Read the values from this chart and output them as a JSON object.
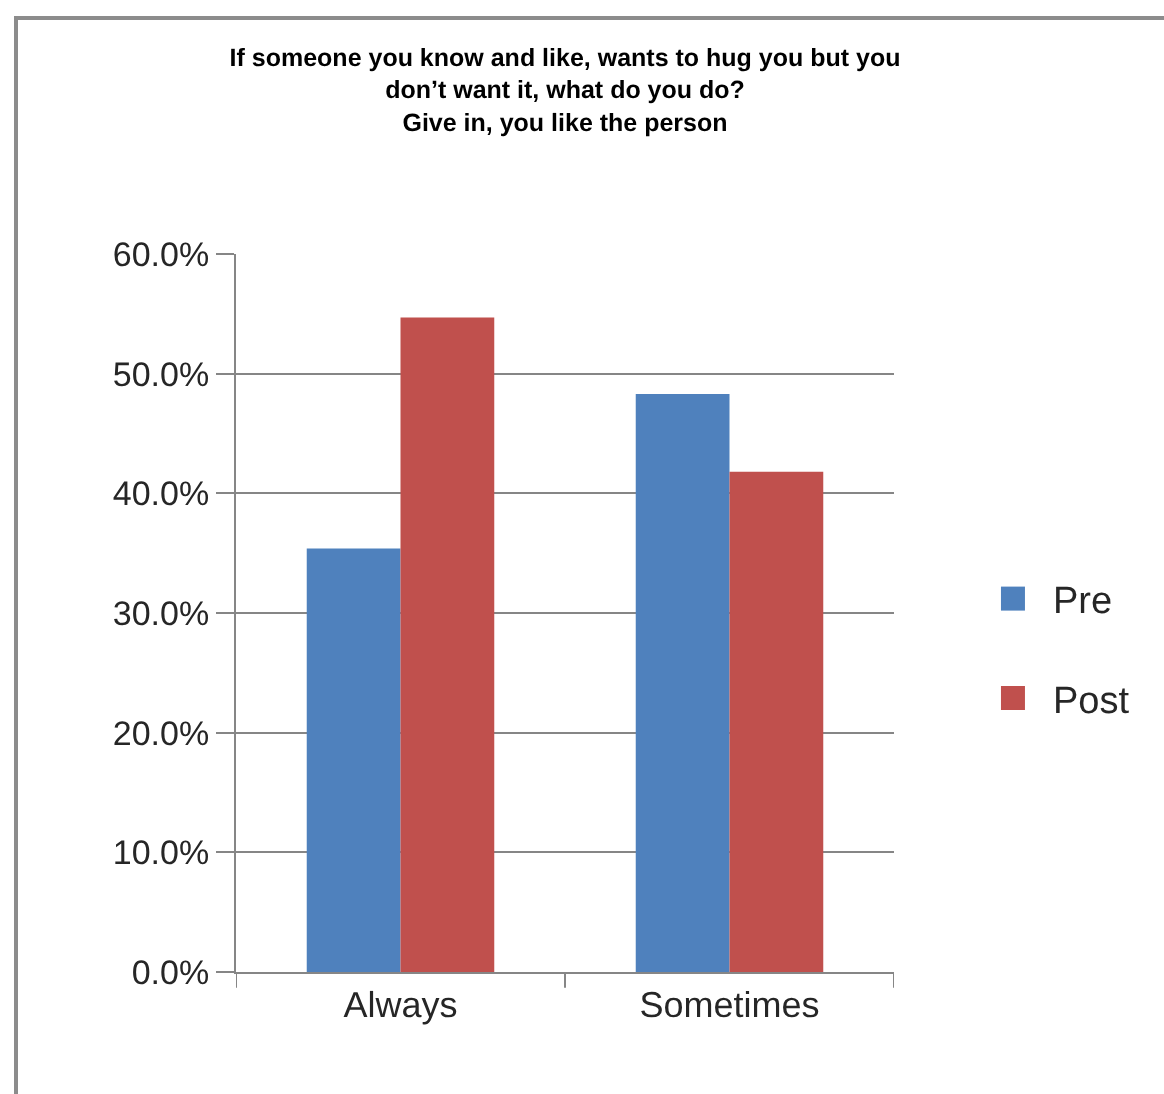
{
  "chart_data": {
    "type": "bar",
    "title": "If someone you know and like, wants to hug you but you\ndon’t want it, what do you do?\nGive in, you like the person",
    "categories": [
      "Always",
      "Sometimes"
    ],
    "series": [
      {
        "name": "Pre",
        "color": "#4f81bd",
        "values": [
          35.4,
          48.3
        ]
      },
      {
        "name": "Post",
        "color": "#c0504d",
        "values": [
          54.7,
          41.8
        ]
      }
    ],
    "ylim": [
      0,
      60
    ],
    "yticks": [
      {
        "value": 0,
        "label": "0.0%"
      },
      {
        "value": 10,
        "label": "10.0%"
      },
      {
        "value": 20,
        "label": "20.0%"
      },
      {
        "value": 30,
        "label": "30.0%"
      },
      {
        "value": 40,
        "label": "40.0%"
      },
      {
        "value": 50,
        "label": "50.0%"
      },
      {
        "value": 60,
        "label": "60.0%"
      }
    ],
    "grid": "y",
    "legend": "right"
  }
}
